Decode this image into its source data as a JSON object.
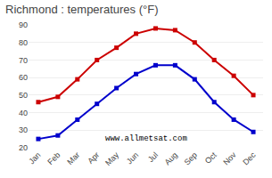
{
  "chart_data": {
    "type": "line",
    "title": "Richmond : temperatures (°F)",
    "categories": [
      "Jan",
      "Feb",
      "Mar",
      "Apr",
      "May",
      "Jun",
      "Jul",
      "Aug",
      "Sep",
      "Oct",
      "Nov",
      "Dec"
    ],
    "series": [
      {
        "color": "#cc0000",
        "values": [
          46,
          49,
          59,
          70,
          77,
          85,
          88,
          87,
          80,
          70,
          61,
          50
        ]
      },
      {
        "color": "#0000cc",
        "values": [
          25,
          27,
          36,
          45,
          54,
          62,
          67,
          67,
          59,
          46,
          36,
          29
        ]
      }
    ],
    "marker": "square",
    "ylim": [
      20,
      90
    ],
    "yticks": [
      20,
      30,
      40,
      50,
      60,
      70,
      80,
      90
    ],
    "grid": "y",
    "annotations": [
      "www.allmetsat.com"
    ]
  }
}
